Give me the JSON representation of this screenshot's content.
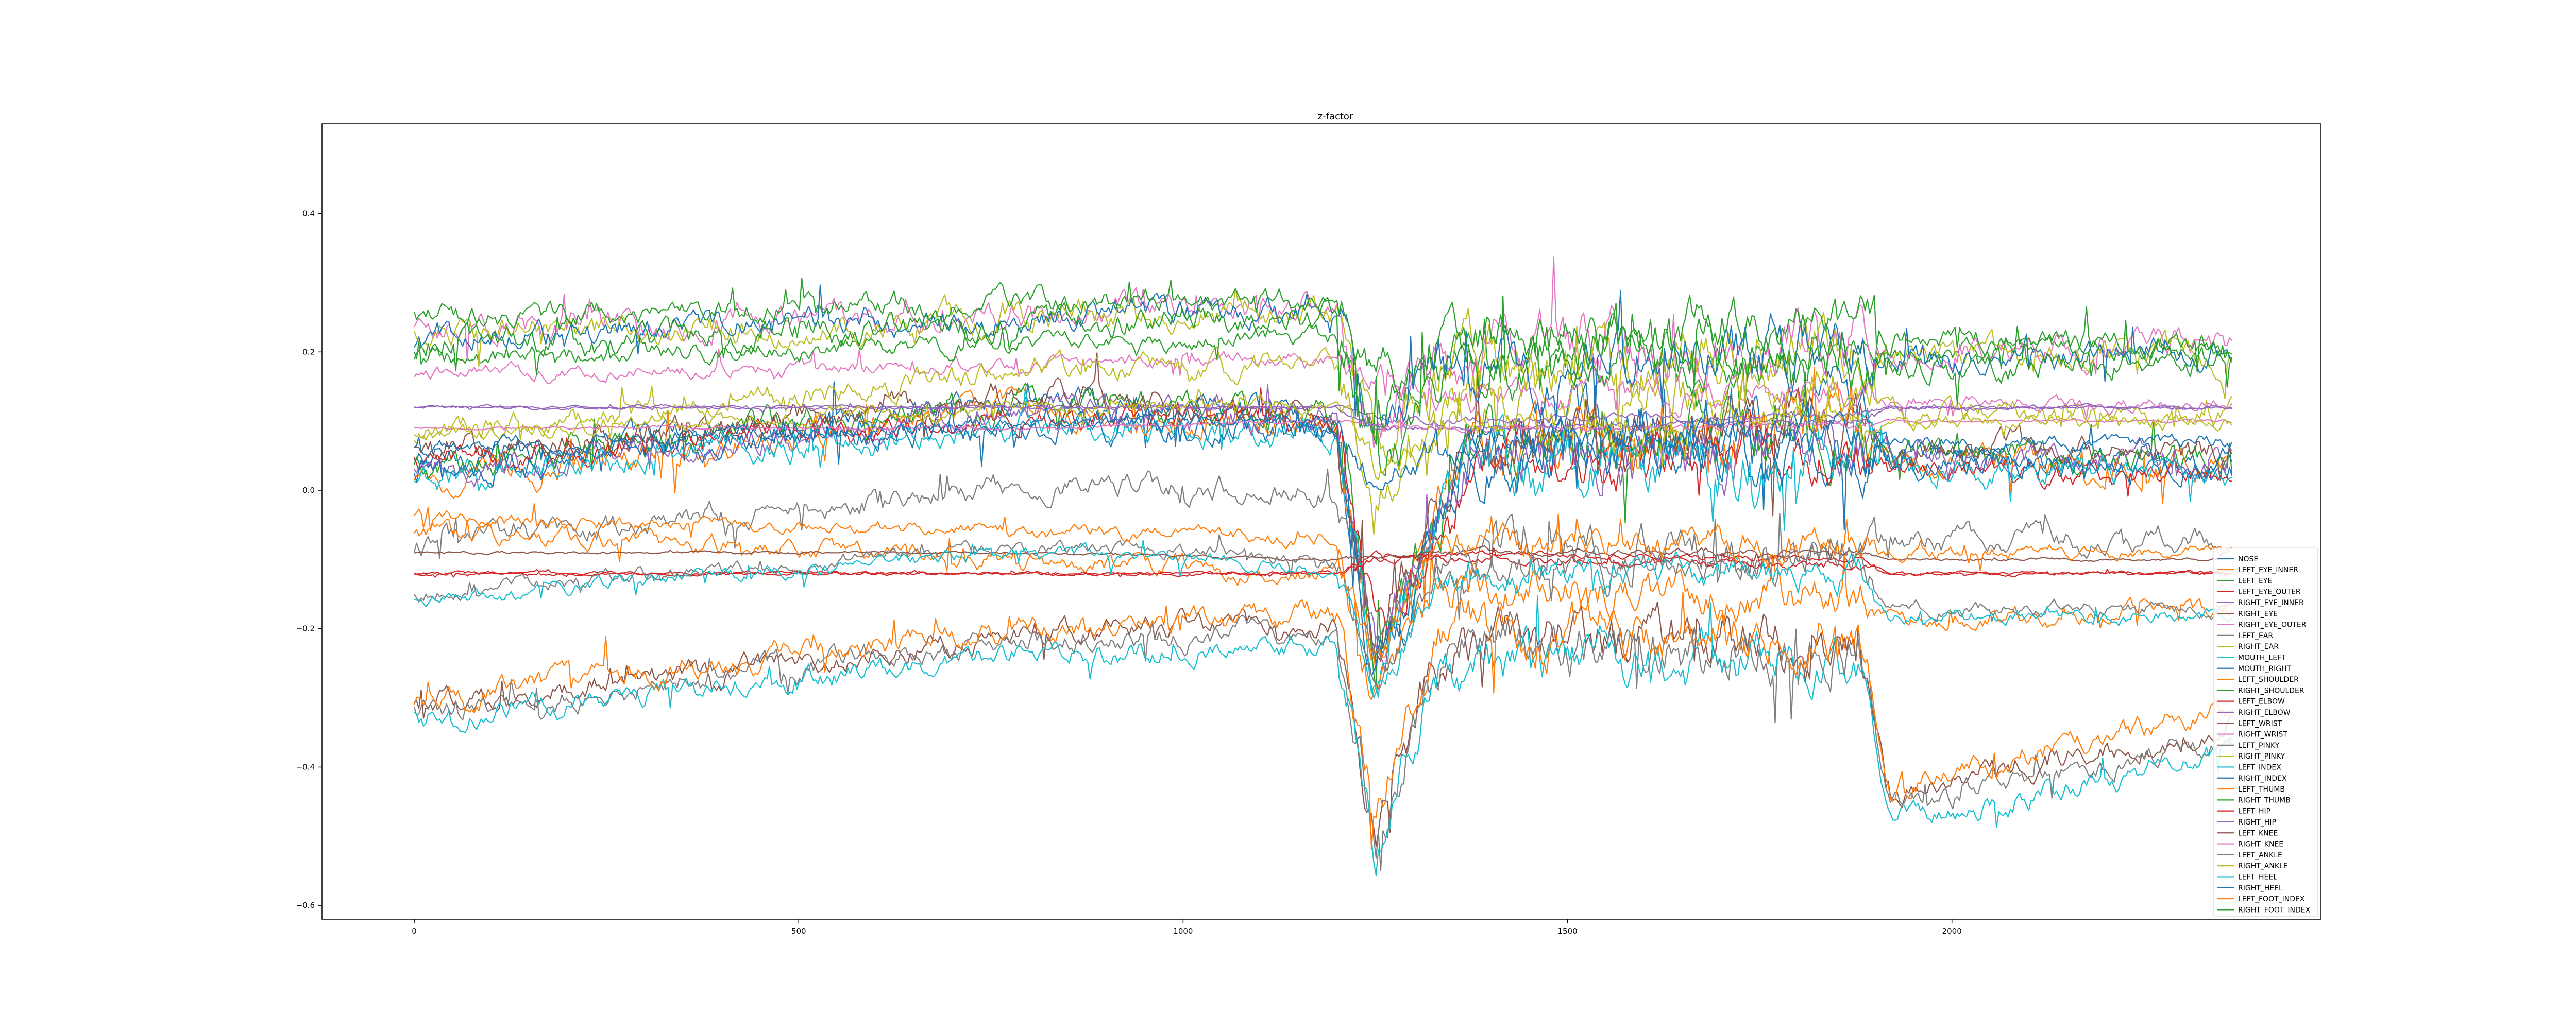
{
  "chart_data": {
    "type": "line",
    "title": "z-factor",
    "xlabel": "",
    "ylabel": "",
    "xlim": [
      -120,
      2480
    ],
    "ylim": [
      -0.62,
      0.53
    ],
    "xticks": [
      0,
      500,
      1000,
      1500,
      2000
    ],
    "yticks": [
      -0.6,
      -0.4,
      -0.2,
      0.0,
      0.2,
      0.4
    ],
    "ytick_labels": [
      "−0.6",
      "−0.4",
      "−0.2",
      "0.0",
      "0.2",
      "0.4"
    ],
    "grid": false,
    "legend_position": "lower-right",
    "colors": [
      "#1f77b4",
      "#ff7f0e",
      "#2ca02c",
      "#d62728",
      "#9467bd",
      "#8c564b",
      "#e377c2",
      "#7f7f7f",
      "#bcbd22",
      "#17becf"
    ],
    "x_range": [
      0,
      2365
    ],
    "breakpoints": [
      0,
      790,
      1200,
      1250,
      1330,
      1370,
      1880,
      1920,
      2365
    ],
    "series": [
      {
        "name": "NOSE",
        "levels": [
          0.04,
          0.13,
          0.1,
          -0.25,
          -0.02,
          0.06,
          0.1,
          0.05,
          0.04
        ],
        "noise": 0.03
      },
      {
        "name": "LEFT_EYE_INNER",
        "levels": [
          0.01,
          0.12,
          0.09,
          -0.25,
          -0.04,
          0.05,
          0.08,
          0.04,
          0.03
        ],
        "noise": 0.03
      },
      {
        "name": "LEFT_EYE",
        "levels": [
          0.03,
          0.13,
          0.1,
          -0.23,
          -0.03,
          0.06,
          0.09,
          0.05,
          0.04
        ],
        "noise": 0.03
      },
      {
        "name": "LEFT_EYE_OUTER",
        "levels": [
          0.04,
          0.11,
          0.09,
          -0.22,
          -0.05,
          0.04,
          0.06,
          0.03,
          0.02
        ],
        "noise": 0.025
      },
      {
        "name": "RIGHT_EYE_INNER",
        "levels": [
          0.02,
          0.12,
          0.1,
          -0.24,
          -0.03,
          0.05,
          0.07,
          0.05,
          0.04
        ],
        "noise": 0.03
      },
      {
        "name": "RIGHT_EYE",
        "levels": [
          0.05,
          0.14,
          0.11,
          -0.2,
          -0.02,
          0.06,
          0.09,
          0.06,
          0.05
        ],
        "noise": 0.03
      },
      {
        "name": "RIGHT_EYE_OUTER",
        "levels": [
          0.17,
          0.18,
          0.19,
          0.16,
          0.14,
          0.14,
          0.14,
          0.13,
          0.12
        ],
        "noise": 0.015
      },
      {
        "name": "LEFT_EAR",
        "levels": [
          -0.08,
          0.01,
          0.0,
          -0.2,
          -0.12,
          -0.1,
          -0.08,
          -0.07,
          -0.07
        ],
        "noise": 0.025
      },
      {
        "name": "RIGHT_EAR",
        "levels": [
          0.08,
          0.17,
          0.18,
          0.0,
          0.1,
          0.13,
          0.14,
          0.11,
          0.11
        ],
        "noise": 0.025
      },
      {
        "name": "MOUTH_LEFT",
        "levels": [
          0.02,
          0.09,
          0.08,
          -0.28,
          -0.06,
          0.03,
          0.05,
          0.03,
          0.03
        ],
        "noise": 0.03
      },
      {
        "name": "MOUTH_RIGHT",
        "levels": [
          0.03,
          0.1,
          0.09,
          -0.26,
          -0.05,
          0.04,
          0.07,
          0.04,
          0.04
        ],
        "noise": 0.03
      },
      {
        "name": "LEFT_SHOULDER",
        "levels": [
          -0.06,
          -0.1,
          -0.12,
          -0.3,
          -0.15,
          -0.14,
          -0.16,
          -0.18,
          -0.18
        ],
        "noise": 0.02
      },
      {
        "name": "RIGHT_SHOULDER",
        "levels": [
          0.19,
          0.21,
          0.22,
          0.18,
          0.16,
          0.18,
          0.19,
          0.2,
          0.2
        ],
        "noise": 0.02
      },
      {
        "name": "LEFT_ELBOW",
        "levels": [
          -0.12,
          -0.12,
          -0.12,
          -0.1,
          -0.1,
          -0.1,
          -0.11,
          -0.12,
          -0.12
        ],
        "noise": 0.004
      },
      {
        "name": "RIGHT_ELBOW",
        "levels": [
          0.12,
          0.12,
          0.12,
          0.1,
          0.1,
          0.1,
          0.11,
          0.12,
          0.12
        ],
        "noise": 0.004
      },
      {
        "name": "LEFT_WRIST",
        "levels": [
          -0.31,
          -0.21,
          -0.19,
          -0.48,
          -0.24,
          -0.22,
          -0.22,
          -0.44,
          -0.34
        ],
        "noise": 0.025
      },
      {
        "name": "RIGHT_WRIST",
        "levels": [
          0.23,
          0.26,
          0.27,
          0.05,
          0.18,
          0.2,
          0.22,
          0.2,
          0.21
        ],
        "noise": 0.03
      },
      {
        "name": "LEFT_PINKY",
        "levels": [
          -0.32,
          -0.22,
          -0.2,
          -0.5,
          -0.25,
          -0.23,
          -0.23,
          -0.46,
          -0.36
        ],
        "noise": 0.025
      },
      {
        "name": "RIGHT_PINKY",
        "levels": [
          0.22,
          0.25,
          0.26,
          0.03,
          0.17,
          0.19,
          0.21,
          0.19,
          0.2
        ],
        "noise": 0.03
      },
      {
        "name": "LEFT_INDEX",
        "levels": [
          -0.33,
          -0.24,
          -0.22,
          -0.52,
          -0.27,
          -0.25,
          -0.25,
          -0.48,
          -0.38
        ],
        "noise": 0.025
      },
      {
        "name": "RIGHT_INDEX",
        "levels": [
          0.22,
          0.25,
          0.26,
          0.03,
          0.17,
          0.19,
          0.21,
          0.19,
          0.2
        ],
        "noise": 0.03
      },
      {
        "name": "LEFT_THUMB",
        "levels": [
          -0.3,
          -0.2,
          -0.18,
          -0.46,
          -0.23,
          -0.21,
          -0.21,
          -0.42,
          -0.32
        ],
        "noise": 0.025
      },
      {
        "name": "RIGHT_THUMB",
        "levels": [
          0.21,
          0.24,
          0.25,
          0.02,
          0.16,
          0.18,
          0.2,
          0.18,
          0.19
        ],
        "noise": 0.03
      },
      {
        "name": "LEFT_HIP",
        "levels": [
          -0.12,
          -0.12,
          -0.12,
          -0.09,
          -0.09,
          -0.09,
          -0.1,
          -0.12,
          -0.12
        ],
        "noise": 0.003
      },
      {
        "name": "RIGHT_HIP",
        "levels": [
          0.12,
          0.12,
          0.12,
          0.09,
          0.09,
          0.09,
          0.1,
          0.12,
          0.12
        ],
        "noise": 0.003
      },
      {
        "name": "LEFT_KNEE",
        "levels": [
          -0.09,
          -0.09,
          -0.1,
          -0.09,
          -0.09,
          -0.09,
          -0.09,
          -0.1,
          -0.1
        ],
        "noise": 0.003
      },
      {
        "name": "RIGHT_KNEE",
        "levels": [
          0.09,
          0.09,
          0.1,
          0.09,
          0.09,
          0.09,
          0.09,
          0.1,
          0.1
        ],
        "noise": 0.003
      },
      {
        "name": "LEFT_ANKLE",
        "levels": [
          -0.15,
          -0.08,
          -0.1,
          -0.28,
          -0.12,
          -0.11,
          -0.11,
          -0.17,
          -0.17
        ],
        "noise": 0.015
      },
      {
        "name": "RIGHT_ANKLE",
        "levels": [
          0.08,
          0.12,
          0.12,
          0.02,
          0.08,
          0.09,
          0.1,
          0.1,
          0.1
        ],
        "noise": 0.015
      },
      {
        "name": "LEFT_HEEL",
        "levels": [
          -0.16,
          -0.09,
          -0.11,
          -0.3,
          -0.13,
          -0.12,
          -0.12,
          -0.18,
          -0.18
        ],
        "noise": 0.015
      },
      {
        "name": "RIGHT_HEEL",
        "levels": [
          0.06,
          0.1,
          0.1,
          0.0,
          0.06,
          0.07,
          0.08,
          0.07,
          0.07
        ],
        "noise": 0.015
      },
      {
        "name": "LEFT_FOOT_INDEX",
        "levels": [
          -0.04,
          -0.06,
          -0.07,
          -0.25,
          -0.09,
          -0.08,
          -0.08,
          -0.09,
          -0.09
        ],
        "noise": 0.015
      },
      {
        "name": "RIGHT_FOOT_INDEX",
        "levels": [
          0.25,
          0.27,
          0.28,
          0.12,
          0.22,
          0.22,
          0.24,
          0.22,
          0.21
        ],
        "noise": 0.025
      }
    ]
  }
}
